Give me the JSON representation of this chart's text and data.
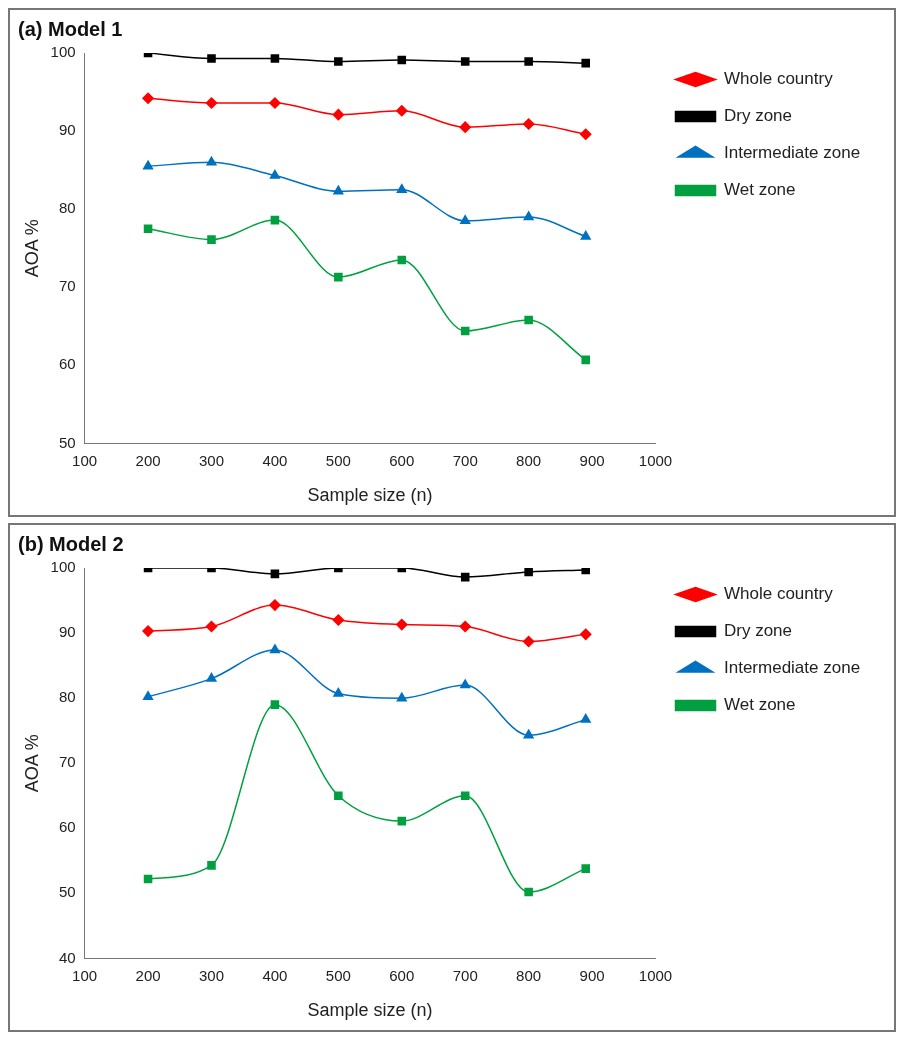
{
  "chart_data": [
    {
      "type": "line",
      "title": "(a) Model 1",
      "xlabel": "Sample size (n)",
      "ylabel": "AOA %",
      "x": [
        200,
        300,
        400,
        500,
        600,
        700,
        800,
        890
      ],
      "series": [
        {
          "name": "Whole country",
          "color": "#ff0000",
          "marker": "diamond",
          "values": [
            94.2,
            93.6,
            93.6,
            92.1,
            92.6,
            90.5,
            90.9,
            89.6
          ]
        },
        {
          "name": "Dry zone",
          "color": "#000000",
          "marker": "square",
          "values": [
            100,
            99.3,
            99.3,
            98.9,
            99.1,
            98.9,
            98.9,
            98.7
          ]
        },
        {
          "name": "Intermediate zone",
          "color": "#0070c0",
          "marker": "triangle",
          "values": [
            85.5,
            86,
            84.3,
            82.3,
            82.5,
            78.5,
            79,
            76.5
          ]
        },
        {
          "name": "Wet zone",
          "color": "#00a040",
          "marker": "square",
          "values": [
            77.5,
            76.1,
            78.6,
            71.3,
            73.5,
            64.4,
            65.8,
            60.7
          ]
        }
      ],
      "xlim": [
        100,
        1000
      ],
      "xticks": [
        100,
        200,
        300,
        400,
        500,
        600,
        700,
        800,
        900,
        1000
      ],
      "ylim": [
        50,
        100
      ],
      "yticks": [
        50,
        60,
        70,
        80,
        90,
        100
      ],
      "grid": false,
      "legend": "top right",
      "line_style": "solid"
    },
    {
      "type": "line",
      "title": "(b) Model 2",
      "xlabel": "Sample size (n)",
      "ylabel": "AOA %",
      "x": [
        200,
        300,
        400,
        500,
        600,
        700,
        800,
        890
      ],
      "series": [
        {
          "name": "Whole country",
          "color": "#ff0000",
          "marker": "diamond",
          "values": [
            90.3,
            91,
            94.3,
            92,
            91.3,
            91,
            88.7,
            89.8
          ]
        },
        {
          "name": "Dry zone",
          "color": "#000000",
          "marker": "square",
          "values": [
            100,
            100,
            99.1,
            100,
            100,
            98.6,
            99.4,
            99.7
          ]
        },
        {
          "name": "Intermediate zone",
          "color": "#0070c0",
          "marker": "triangle",
          "values": [
            80.2,
            83,
            87.4,
            80.7,
            80,
            82,
            74.3,
            76.7
          ]
        },
        {
          "name": "Wet zone",
          "color": "#00a040",
          "marker": "square",
          "values": [
            52.2,
            54.3,
            79,
            65,
            61.1,
            65,
            50.2,
            53.8
          ]
        }
      ],
      "xlim": [
        100,
        1000
      ],
      "xticks": [
        100,
        200,
        300,
        400,
        500,
        600,
        700,
        800,
        900,
        1000
      ],
      "ylim": [
        40,
        100
      ],
      "yticks": [
        40,
        50,
        60,
        70,
        80,
        90,
        100
      ],
      "grid": false,
      "legend": "top right",
      "line_style": "solid"
    }
  ]
}
